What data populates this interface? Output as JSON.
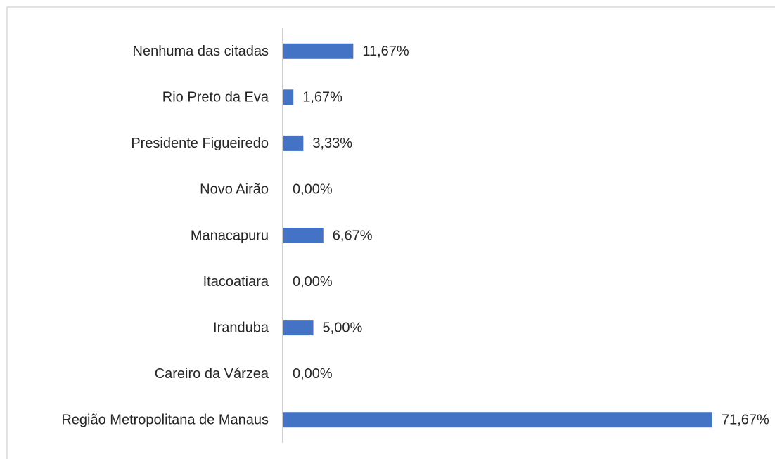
{
  "chart_data": {
    "type": "bar",
    "orientation": "horizontal",
    "categories": [
      "Nenhuma das citadas",
      "Rio Preto da Eva",
      "Presidente Figueiredo",
      "Novo Airão",
      "Manacapuru",
      "Itacoatiara",
      "Iranduba",
      "Careiro da Várzea",
      "Região Metropolitana de Manaus"
    ],
    "values": [
      11.67,
      1.67,
      3.33,
      0,
      6.67,
      0,
      5,
      0,
      71.67
    ],
    "value_labels": [
      "11,67%",
      "1,67%",
      "3,33%",
      "0,00%",
      "6,67%",
      "0,00%",
      "5,00%",
      "0,00%",
      "71,67%"
    ],
    "color": "#4472c4"
  }
}
